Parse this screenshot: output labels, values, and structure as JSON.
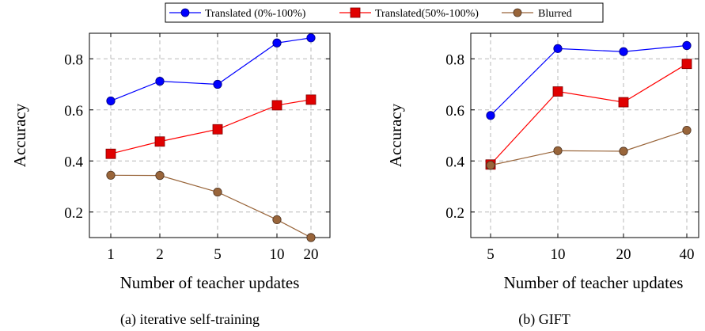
{
  "legend": {
    "placement": "top-center",
    "entries": [
      "Translated (0%-100%)",
      "Translated(50%-100%)",
      "Blurred"
    ]
  },
  "colors": {
    "series_1": "#0000ff",
    "series_2": "#ff0000",
    "series_3": "#99653a"
  },
  "chart_data": [
    {
      "type": "line",
      "caption": "(a) iterative self-training",
      "xlabel": "Number of teacher updates",
      "ylabel": "Accuracy",
      "x_categories": [
        "1",
        "2",
        "5",
        "10",
        "20"
      ],
      "yticks": [
        "0.2",
        "0.4",
        "0.6",
        "0.8"
      ],
      "ylim": [
        0.1,
        0.9
      ],
      "grid": true,
      "series": [
        {
          "name": "Translated (0%-100%)",
          "marker": "circle",
          "values": [
            0.635,
            0.712,
            0.7,
            0.862,
            0.882
          ]
        },
        {
          "name": "Translated(50%-100%)",
          "marker": "square",
          "values": [
            0.428,
            0.476,
            0.524,
            0.618,
            0.64
          ]
        },
        {
          "name": "Blurred",
          "marker": "circle",
          "values": [
            0.344,
            0.343,
            0.278,
            0.17,
            0.1
          ]
        }
      ]
    },
    {
      "type": "line",
      "caption": "(b) GIFT",
      "xlabel": "Number of teacher updates",
      "ylabel": "Accuracy",
      "x_categories": [
        "5",
        "10",
        "20",
        "40"
      ],
      "yticks": [
        "0.2",
        "0.4",
        "0.6",
        "0.8"
      ],
      "ylim": [
        0.1,
        0.9
      ],
      "grid": true,
      "series": [
        {
          "name": "Translated (0%-100%)",
          "marker": "circle",
          "values": [
            0.578,
            0.84,
            0.828,
            0.852
          ]
        },
        {
          "name": "Translated(50%-100%)",
          "marker": "square",
          "values": [
            0.386,
            0.672,
            0.63,
            0.78
          ]
        },
        {
          "name": "Blurred",
          "marker": "circle",
          "values": [
            0.383,
            0.44,
            0.438,
            0.52
          ]
        }
      ]
    }
  ]
}
